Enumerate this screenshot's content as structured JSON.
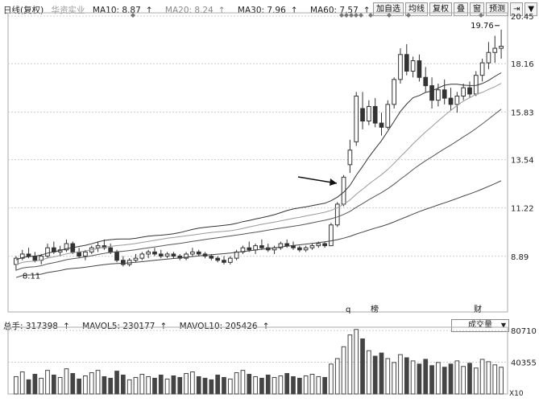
{
  "legend": {
    "title": "日线(复权)",
    "stock_name": "华资实业",
    "ma10": "MA10: 8.87",
    "ma20": "MA20: 8.24",
    "ma30": "MA30: 7.96",
    "ma60": "MA60: 7.57",
    "arrow": "↑"
  },
  "toolbar": {
    "buttons": [
      "加自选",
      "均线",
      "复权",
      "叠",
      "窗",
      "预测"
    ],
    "icon_exit": "⇥",
    "icon_dropdown": "▼"
  },
  "vol_legend": {
    "total": "总手: 317398",
    "mavol5": "MAVOL5: 230177",
    "mavol10": "MAVOL10: 205426",
    "arrow": "↑"
  },
  "vol_select": {
    "label": "成交量",
    "arrow": "▼"
  },
  "colors": {
    "ma10": "#333333",
    "ma20": "#999999",
    "ma30": "#555555",
    "ma60": "#444444",
    "down_candle": "#333333",
    "up_candle": "#ffffff"
  },
  "chart_data": [
    {
      "type": "candlestick",
      "y_ticks": [
        "20.45",
        "18.16",
        "15.83",
        "13.54",
        "11.22",
        "8.89"
      ],
      "ylim": [
        6.6,
        20.45
      ],
      "annotations": {
        "high": "19.76",
        "low": "8.11"
      },
      "event_markers": [
        "q",
        "榜",
        "财"
      ],
      "candles": [
        [
          8.5,
          8.9,
          8.2,
          8.8
        ],
        [
          8.8,
          9.2,
          8.7,
          9.0
        ],
        [
          9.0,
          9.3,
          8.8,
          8.9
        ],
        [
          8.9,
          9.1,
          8.6,
          8.7
        ],
        [
          8.7,
          9.0,
          8.5,
          8.9
        ],
        [
          8.9,
          9.5,
          8.8,
          9.3
        ],
        [
          9.3,
          9.6,
          9.0,
          9.1
        ],
        [
          9.1,
          9.4,
          8.9,
          9.2
        ],
        [
          9.2,
          9.7,
          9.1,
          9.5
        ],
        [
          9.5,
          9.6,
          9.0,
          9.1
        ],
        [
          9.1,
          9.3,
          8.8,
          8.9
        ],
        [
          8.9,
          9.2,
          8.7,
          9.1
        ],
        [
          9.1,
          9.4,
          9.0,
          9.3
        ],
        [
          9.3,
          9.6,
          9.1,
          9.4
        ],
        [
          9.4,
          9.7,
          9.2,
          9.3
        ],
        [
          9.3,
          9.5,
          9.0,
          9.1
        ],
        [
          9.1,
          9.2,
          8.6,
          8.7
        ],
        [
          8.7,
          8.9,
          8.4,
          8.5
        ],
        [
          8.5,
          8.8,
          8.4,
          8.7
        ],
        [
          8.7,
          9.0,
          8.6,
          8.8
        ],
        [
          8.8,
          9.1,
          8.7,
          9.0
        ],
        [
          9.0,
          9.2,
          8.8,
          9.1
        ],
        [
          9.1,
          9.3,
          8.9,
          9.0
        ],
        [
          9.0,
          9.2,
          8.8,
          8.9
        ],
        [
          8.9,
          9.1,
          8.8,
          9.0
        ],
        [
          9.0,
          9.1,
          8.8,
          8.9
        ],
        [
          8.9,
          9.0,
          8.7,
          8.8
        ],
        [
          8.8,
          9.1,
          8.7,
          9.0
        ],
        [
          9.0,
          9.3,
          8.9,
          9.1
        ],
        [
          9.1,
          9.2,
          8.9,
          9.0
        ],
        [
          9.0,
          9.1,
          8.8,
          8.9
        ],
        [
          8.9,
          9.0,
          8.7,
          8.8
        ],
        [
          8.8,
          8.9,
          8.6,
          8.7
        ],
        [
          8.7,
          8.9,
          8.5,
          8.6
        ],
        [
          8.6,
          8.9,
          8.5,
          8.8
        ],
        [
          8.8,
          9.2,
          8.7,
          9.1
        ],
        [
          9.1,
          9.4,
          9.0,
          9.3
        ],
        [
          9.3,
          9.6,
          9.1,
          9.2
        ],
        [
          9.2,
          9.5,
          9.0,
          9.4
        ],
        [
          9.4,
          9.7,
          9.2,
          9.3
        ],
        [
          9.3,
          9.5,
          9.1,
          9.2
        ],
        [
          9.2,
          9.4,
          9.0,
          9.3
        ],
        [
          9.3,
          9.6,
          9.2,
          9.5
        ],
        [
          9.5,
          9.7,
          9.3,
          9.4
        ],
        [
          9.4,
          9.6,
          9.2,
          9.3
        ],
        [
          9.3,
          9.4,
          9.1,
          9.2
        ],
        [
          9.2,
          9.4,
          9.1,
          9.3
        ],
        [
          9.3,
          9.5,
          9.2,
          9.4
        ],
        [
          9.4,
          9.6,
          9.3,
          9.5
        ],
        [
          9.5,
          9.6,
          9.3,
          9.4
        ],
        [
          9.4,
          10.5,
          9.4,
          10.4
        ],
        [
          10.4,
          11.5,
          10.3,
          11.4
        ],
        [
          11.4,
          12.8,
          11.3,
          12.7
        ],
        [
          13.3,
          14.5,
          12.9,
          14.0
        ],
        [
          14.4,
          16.8,
          14.2,
          16.6
        ],
        [
          16.0,
          16.8,
          15.0,
          15.4
        ],
        [
          15.4,
          16.4,
          15.2,
          16.1
        ],
        [
          16.1,
          16.5,
          15.1,
          15.3
        ],
        [
          15.3,
          15.8,
          14.7,
          15.1
        ],
        [
          15.1,
          16.4,
          15.0,
          16.2
        ],
        [
          16.2,
          17.5,
          16.0,
          17.4
        ],
        [
          17.4,
          18.9,
          17.2,
          18.6
        ],
        [
          18.6,
          19.1,
          17.6,
          17.8
        ],
        [
          17.8,
          18.5,
          17.5,
          18.3
        ],
        [
          18.3,
          18.6,
          17.3,
          17.5
        ],
        [
          17.5,
          18.0,
          16.8,
          17.1
        ],
        [
          17.1,
          17.5,
          16.0,
          16.4
        ],
        [
          16.4,
          17.2,
          16.1,
          16.9
        ],
        [
          16.9,
          17.4,
          16.2,
          16.5
        ],
        [
          16.5,
          17.0,
          15.9,
          16.2
        ],
        [
          16.2,
          16.8,
          15.8,
          16.6
        ],
        [
          16.6,
          17.2,
          16.4,
          17.0
        ],
        [
          17.0,
          17.3,
          16.5,
          16.7
        ],
        [
          16.7,
          17.8,
          16.6,
          17.6
        ],
        [
          17.6,
          18.4,
          17.3,
          18.2
        ],
        [
          18.2,
          19.2,
          17.9,
          18.7
        ],
        [
          18.7,
          19.5,
          18.2,
          18.9
        ],
        [
          18.9,
          19.8,
          18.4,
          19.0
        ]
      ],
      "ma_series": [
        {
          "name": "MA10",
          "start": 8.6,
          "end": 18.0
        },
        {
          "name": "MA20",
          "start": 8.4,
          "end": 17.4
        },
        {
          "name": "MA30",
          "start": 8.1,
          "end": 16.8
        },
        {
          "name": "MA60",
          "start": 7.6,
          "end": 13.7
        }
      ]
    },
    {
      "type": "bar",
      "y_ticks": [
        "80710",
        "40355",
        "X10"
      ],
      "ylim": [
        0,
        80710
      ],
      "volumes": [
        22,
        28,
        18,
        25,
        20,
        30,
        24,
        21,
        32,
        26,
        19,
        23,
        27,
        30,
        22,
        20,
        29,
        24,
        18,
        21,
        25,
        22,
        20,
        24,
        19,
        23,
        21,
        26,
        28,
        22,
        20,
        18,
        24,
        21,
        19,
        27,
        30,
        25,
        22,
        20,
        24,
        21,
        23,
        26,
        22,
        20,
        23,
        25,
        22,
        21,
        38,
        45,
        60,
        75,
        82,
        70,
        55,
        48,
        52,
        45,
        40,
        50,
        46,
        42,
        38,
        44,
        36,
        40,
        34,
        38,
        42,
        35,
        39,
        33,
        44,
        41,
        37,
        34
      ]
    }
  ]
}
